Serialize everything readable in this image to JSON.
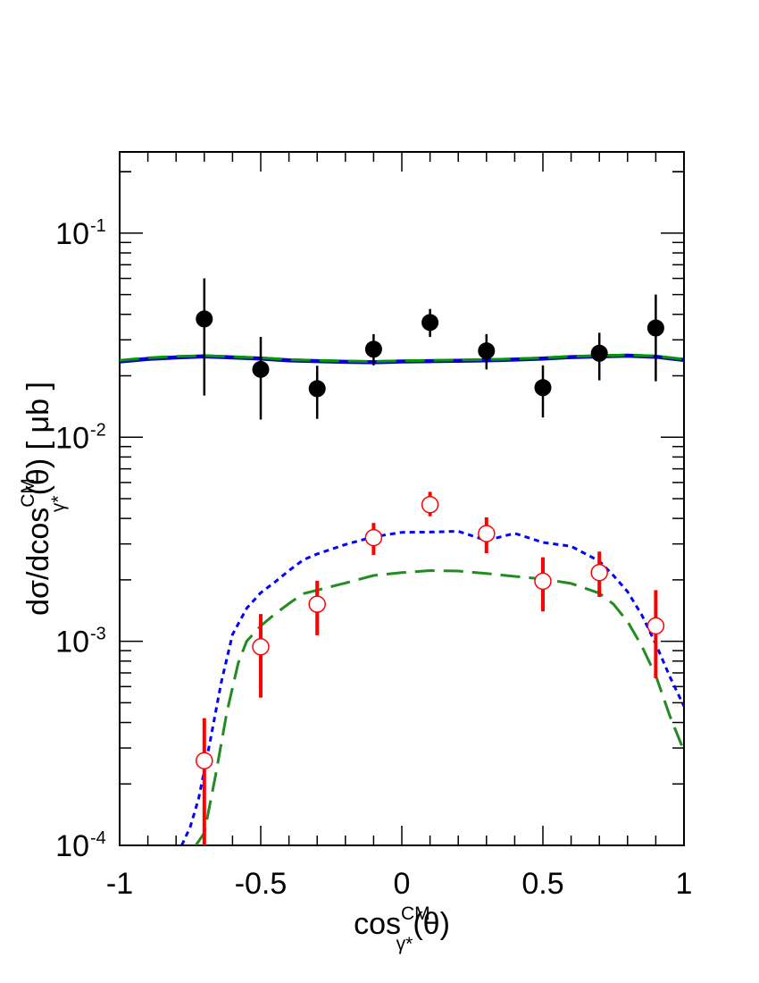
{
  "chart_data": {
    "type": "scatter",
    "title": "",
    "xlabel": {
      "base": "cos",
      "sup": "CM",
      "sub": "γ*",
      "arg": "(θ)"
    },
    "ylabel": {
      "prefix": "dσ/dcos",
      "sup": "CM",
      "sub": "γ*",
      "suffix": "(θ) [ μb ]"
    },
    "x_scale": "linear",
    "y_scale": "log",
    "xlim": [
      -1,
      1
    ],
    "ylim": [
      0.0001,
      0.25
    ],
    "x_ticks": [
      {
        "value": -1,
        "label": "-1"
      },
      {
        "value": -0.5,
        "label": "-0.5"
      },
      {
        "value": 0,
        "label": "0"
      },
      {
        "value": 0.5,
        "label": "0.5"
      },
      {
        "value": 1,
        "label": "1"
      }
    ],
    "y_ticks": [
      {
        "value": 0.0001,
        "base": "10",
        "exp": "-4"
      },
      {
        "value": 0.001,
        "base": "10",
        "exp": "-3"
      },
      {
        "value": 0.01,
        "base": "10",
        "exp": "-2"
      },
      {
        "value": 0.1,
        "base": "10",
        "exp": "-1"
      }
    ],
    "grid": false,
    "legend": "none",
    "series": [
      {
        "kind": "points",
        "marker": "filled-circle",
        "color": "#000000",
        "points": [
          {
            "x": -0.7,
            "y": 0.038,
            "lo": 0.016,
            "hi": 0.06
          },
          {
            "x": -0.5,
            "y": 0.0215,
            "lo": 0.0122,
            "hi": 0.031
          },
          {
            "x": -0.3,
            "y": 0.0173,
            "lo": 0.0123,
            "hi": 0.0224
          },
          {
            "x": -0.1,
            "y": 0.027,
            "lo": 0.0225,
            "hi": 0.032
          },
          {
            "x": 0.1,
            "y": 0.0365,
            "lo": 0.031,
            "hi": 0.0425
          },
          {
            "x": 0.3,
            "y": 0.0265,
            "lo": 0.0215,
            "hi": 0.032
          },
          {
            "x": 0.5,
            "y": 0.0175,
            "lo": 0.0125,
            "hi": 0.0225
          },
          {
            "x": 0.7,
            "y": 0.0258,
            "lo": 0.019,
            "hi": 0.0325
          },
          {
            "x": 0.9,
            "y": 0.0343,
            "lo": 0.0188,
            "hi": 0.05
          }
        ]
      },
      {
        "kind": "points",
        "marker": "open-circle",
        "color": "#ff0000",
        "points": [
          {
            "x": -0.7,
            "y": 0.00026,
            "lo": 0.0001,
            "hi": 0.00042
          },
          {
            "x": -0.5,
            "y": 0.00094,
            "lo": 0.00053,
            "hi": 0.00136
          },
          {
            "x": -0.3,
            "y": 0.00152,
            "lo": 0.00107,
            "hi": 0.00198
          },
          {
            "x": -0.1,
            "y": 0.00322,
            "lo": 0.00265,
            "hi": 0.0038
          },
          {
            "x": 0.1,
            "y": 0.00467,
            "lo": 0.0041,
            "hi": 0.0054
          },
          {
            "x": 0.3,
            "y": 0.00337,
            "lo": 0.0027,
            "hi": 0.00405
          },
          {
            "x": 0.5,
            "y": 0.00197,
            "lo": 0.0014,
            "hi": 0.00258
          },
          {
            "x": 0.7,
            "y": 0.00217,
            "lo": 0.00165,
            "hi": 0.00275
          },
          {
            "x": 0.9,
            "y": 0.00119,
            "lo": 0.00066,
            "hi": 0.00178
          }
        ]
      },
      {
        "kind": "line",
        "style": "solid",
        "color": "#0000cc",
        "x": [
          -1,
          -0.9,
          -0.8,
          -0.7,
          -0.6,
          -0.5,
          -0.4,
          -0.3,
          -0.2,
          -0.1,
          0,
          0.1,
          0.2,
          0.3,
          0.4,
          0.5,
          0.6,
          0.7,
          0.8,
          0.9,
          1
        ],
        "y": [
          0.0235,
          0.0242,
          0.0246,
          0.0249,
          0.0246,
          0.0243,
          0.0238,
          0.0236,
          0.0234,
          0.0233,
          0.0235,
          0.0236,
          0.0237,
          0.0238,
          0.024,
          0.0243,
          0.0247,
          0.0249,
          0.0251,
          0.0248,
          0.0239
        ]
      },
      {
        "kind": "line",
        "style": "long-dash",
        "color": "#009900",
        "x": [
          -1,
          -0.9,
          -0.8,
          -0.7,
          -0.6,
          -0.5,
          -0.4,
          -0.3,
          -0.2,
          -0.1,
          0,
          0.1,
          0.2,
          0.3,
          0.4,
          0.5,
          0.6,
          0.7,
          0.8,
          0.9,
          1
        ],
        "y": [
          0.0238,
          0.0245,
          0.0249,
          0.0251,
          0.0248,
          0.0245,
          0.024,
          0.0238,
          0.0236,
          0.0235,
          0.0237,
          0.0238,
          0.0239,
          0.024,
          0.0242,
          0.0245,
          0.0249,
          0.0251,
          0.0253,
          0.025,
          0.0241
        ]
      },
      {
        "kind": "line",
        "style": "dotted",
        "color": "#0000ff",
        "x": [
          -0.78,
          -0.75,
          -0.72,
          -0.68,
          -0.64,
          -0.6,
          -0.55,
          -0.5,
          -0.45,
          -0.4,
          -0.35,
          -0.3,
          -0.2,
          -0.1,
          0,
          0.1,
          0.2,
          0.3,
          0.4,
          0.5,
          0.6,
          0.7,
          0.75,
          0.8,
          0.85,
          0.9,
          0.95,
          1
        ],
        "y": [
          0.0001,
          0.000123,
          0.00017,
          0.00032,
          0.00063,
          0.00108,
          0.00145,
          0.00173,
          0.00195,
          0.00222,
          0.0025,
          0.00268,
          0.00298,
          0.00325,
          0.00342,
          0.00343,
          0.00346,
          0.00312,
          0.00338,
          0.00305,
          0.00292,
          0.00247,
          0.0021,
          0.00175,
          0.00135,
          0.00097,
          0.00067,
          0.00048
        ]
      },
      {
        "kind": "line",
        "style": "long-dash",
        "color": "#228B22",
        "x": [
          -0.73,
          -0.7,
          -0.66,
          -0.62,
          -0.58,
          -0.55,
          -0.5,
          -0.45,
          -0.4,
          -0.35,
          -0.3,
          -0.2,
          -0.1,
          0,
          0.1,
          0.2,
          0.3,
          0.4,
          0.5,
          0.6,
          0.7,
          0.75,
          0.8,
          0.85,
          0.9,
          0.95,
          1
        ],
        "y": [
          0.0001,
          0.000115,
          0.00022,
          0.00045,
          0.00078,
          0.001,
          0.00119,
          0.00136,
          0.00153,
          0.00171,
          0.00178,
          0.00193,
          0.0021,
          0.00217,
          0.00222,
          0.00221,
          0.00215,
          0.00208,
          0.00202,
          0.00192,
          0.00172,
          0.00152,
          0.00125,
          0.00095,
          0.00068,
          0.00043,
          0.00029
        ]
      }
    ]
  }
}
